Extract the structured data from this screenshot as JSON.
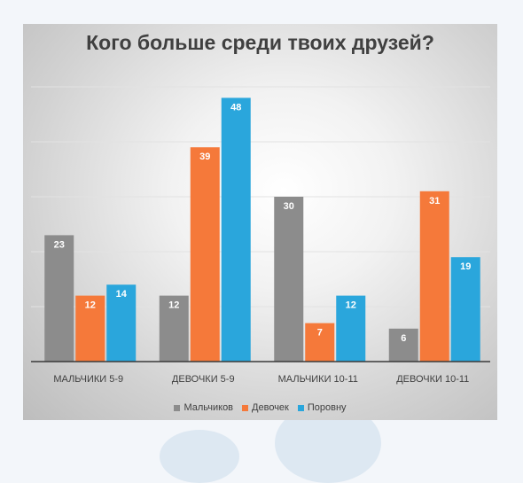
{
  "chart_data": {
    "type": "bar",
    "title": "Кого больше среди твоих друзей?",
    "categories": [
      "МАЛЬЧИКИ 5-9",
      "ДЕВОЧКИ 5-9",
      "МАЛЬЧИКИ 10-11",
      "ДЕВОЧКИ 10-11"
    ],
    "series": [
      {
        "name": "Мальчиков",
        "color": "#8c8c8c",
        "values": [
          23,
          12,
          30,
          6
        ]
      },
      {
        "name": "Девочек",
        "color": "#f5793a",
        "values": [
          12,
          39,
          7,
          31
        ]
      },
      {
        "name": "Поровну",
        "color": "#2aa6dc",
        "values": [
          14,
          48,
          12,
          19
        ]
      }
    ],
    "xlabel": "",
    "ylabel": "",
    "ylim": [
      0,
      50
    ],
    "grid": true,
    "legend_position": "bottom",
    "data_labels": true
  }
}
